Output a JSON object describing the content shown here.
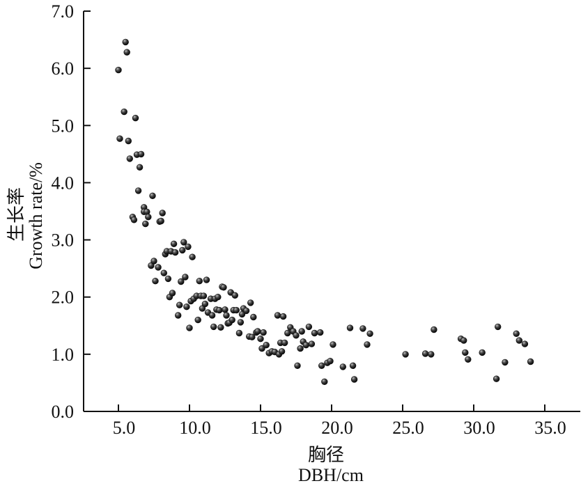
{
  "chart_data": {
    "type": "scatter",
    "xlabel_cn": "胸径",
    "xlabel": "DBH/cm",
    "ylabel_cn": "生长率",
    "ylabel": "Growth rate/%",
    "xlim": [
      0,
      35.0
    ],
    "ylim": [
      0.0,
      7.0
    ],
    "x_ticks": [
      5.0,
      10.0,
      15.0,
      20.0,
      25.0,
      30.0,
      35.0
    ],
    "x_tick_labels": [
      "5.0",
      "10.0",
      "15.0",
      "20.0",
      "25.0",
      "30.0",
      "35.0"
    ],
    "y_ticks": [
      0.0,
      1.0,
      2.0,
      3.0,
      4.0,
      5.0,
      6.0,
      7.0
    ],
    "y_tick_labels": [
      "0.0",
      "1.0",
      "2.0",
      "3.0",
      "4.0",
      "5.0",
      "6.0",
      "7.0"
    ],
    "grid": false,
    "marker_color": "#333333",
    "points": [
      [
        5.0,
        5.97
      ],
      [
        5.1,
        4.77
      ],
      [
        5.4,
        5.24
      ],
      [
        5.5,
        6.46
      ],
      [
        5.6,
        6.28
      ],
      [
        5.7,
        4.73
      ],
      [
        5.8,
        4.42
      ],
      [
        6.0,
        3.4
      ],
      [
        6.1,
        3.35
      ],
      [
        6.2,
        5.13
      ],
      [
        6.3,
        4.49
      ],
      [
        6.4,
        3.86
      ],
      [
        6.5,
        4.27
      ],
      [
        6.6,
        4.5
      ],
      [
        6.8,
        3.57
      ],
      [
        6.8,
        3.49
      ],
      [
        6.9,
        3.28
      ],
      [
        7.0,
        3.49
      ],
      [
        7.1,
        3.4
      ],
      [
        7.3,
        2.55
      ],
      [
        7.4,
        3.77
      ],
      [
        7.5,
        2.63
      ],
      [
        7.6,
        2.28
      ],
      [
        7.8,
        2.52
      ],
      [
        7.9,
        3.32
      ],
      [
        8.0,
        3.33
      ],
      [
        8.1,
        3.47
      ],
      [
        8.2,
        2.42
      ],
      [
        8.3,
        2.75
      ],
      [
        8.4,
        2.8
      ],
      [
        8.5,
        2.32
      ],
      [
        8.6,
        2.0
      ],
      [
        8.7,
        2.8
      ],
      [
        8.8,
        2.07
      ],
      [
        8.9,
        2.93
      ],
      [
        9.0,
        2.78
      ],
      [
        9.2,
        1.68
      ],
      [
        9.3,
        1.86
      ],
      [
        9.4,
        2.27
      ],
      [
        9.5,
        2.82
      ],
      [
        9.6,
        2.96
      ],
      [
        9.7,
        2.35
      ],
      [
        9.8,
        1.83
      ],
      [
        9.9,
        2.88
      ],
      [
        10.0,
        1.46
      ],
      [
        10.1,
        1.93
      ],
      [
        10.2,
        2.7
      ],
      [
        10.3,
        1.97
      ],
      [
        10.5,
        2.02
      ],
      [
        10.6,
        1.6
      ],
      [
        10.7,
        2.28
      ],
      [
        10.8,
        2.02
      ],
      [
        10.9,
        1.8
      ],
      [
        11.0,
        2.02
      ],
      [
        11.1,
        1.88
      ],
      [
        11.2,
        2.3
      ],
      [
        11.3,
        1.73
      ],
      [
        11.5,
        1.97
      ],
      [
        11.6,
        1.68
      ],
      [
        11.7,
        1.48
      ],
      [
        11.8,
        1.97
      ],
      [
        11.9,
        1.78
      ],
      [
        12.0,
        2.0
      ],
      [
        12.1,
        1.77
      ],
      [
        12.2,
        1.47
      ],
      [
        12.3,
        2.18
      ],
      [
        12.4,
        2.17
      ],
      [
        12.5,
        1.78
      ],
      [
        12.6,
        1.68
      ],
      [
        12.7,
        1.54
      ],
      [
        12.8,
        1.55
      ],
      [
        12.9,
        2.08
      ],
      [
        13.0,
        1.6
      ],
      [
        13.1,
        1.77
      ],
      [
        13.2,
        2.03
      ],
      [
        13.3,
        1.77
      ],
      [
        13.5,
        1.37
      ],
      [
        13.6,
        1.56
      ],
      [
        13.7,
        1.7
      ],
      [
        13.8,
        1.8
      ],
      [
        14.0,
        1.76
      ],
      [
        14.2,
        1.31
      ],
      [
        14.3,
        1.9
      ],
      [
        14.4,
        1.3
      ],
      [
        14.5,
        1.65
      ],
      [
        14.7,
        1.38
      ],
      [
        14.8,
        1.4
      ],
      [
        15.0,
        1.27
      ],
      [
        15.1,
        1.1
      ],
      [
        15.2,
        1.38
      ],
      [
        15.4,
        1.16
      ],
      [
        15.6,
        1.02
      ],
      [
        15.8,
        1.05
      ],
      [
        16.0,
        1.04
      ],
      [
        16.2,
        1.68
      ],
      [
        16.3,
        1.0
      ],
      [
        16.4,
        1.2
      ],
      [
        16.5,
        1.05
      ],
      [
        16.6,
        1.66
      ],
      [
        16.7,
        1.2
      ],
      [
        16.9,
        1.37
      ],
      [
        17.1,
        1.47
      ],
      [
        17.3,
        1.4
      ],
      [
        17.5,
        1.33
      ],
      [
        17.6,
        0.8
      ],
      [
        17.8,
        1.1
      ],
      [
        17.9,
        1.4
      ],
      [
        18.0,
        1.22
      ],
      [
        18.2,
        1.16
      ],
      [
        18.4,
        1.48
      ],
      [
        18.6,
        1.18
      ],
      [
        18.8,
        1.37
      ],
      [
        19.2,
        1.38
      ],
      [
        19.3,
        0.8
      ],
      [
        19.5,
        0.52
      ],
      [
        19.7,
        0.85
      ],
      [
        19.9,
        0.88
      ],
      [
        20.1,
        1.17
      ],
      [
        20.8,
        0.78
      ],
      [
        21.3,
        1.46
      ],
      [
        21.5,
        0.8
      ],
      [
        21.6,
        0.56
      ],
      [
        22.2,
        1.45
      ],
      [
        22.5,
        1.17
      ],
      [
        22.7,
        1.36
      ],
      [
        25.2,
        1.0
      ],
      [
        26.6,
        1.01
      ],
      [
        27.0,
        1.0
      ],
      [
        27.2,
        1.43
      ],
      [
        29.1,
        1.27
      ],
      [
        29.3,
        1.24
      ],
      [
        29.4,
        1.03
      ],
      [
        29.6,
        0.91
      ],
      [
        30.6,
        1.03
      ],
      [
        31.6,
        0.57
      ],
      [
        31.7,
        1.48
      ],
      [
        32.2,
        0.86
      ],
      [
        33.0,
        1.36
      ],
      [
        33.2,
        1.24
      ],
      [
        33.6,
        1.18
      ],
      [
        34.0,
        0.87
      ]
    ]
  }
}
